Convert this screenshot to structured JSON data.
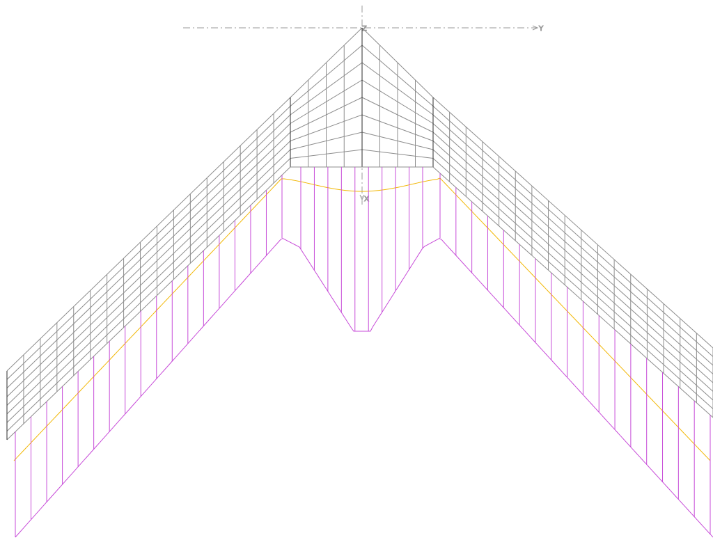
{
  "axes": {
    "y_label": "Y",
    "z_label": "Z",
    "x_label": "X"
  },
  "colors": {
    "background": "#ffffff",
    "mesh": "#8c8c8c",
    "mesh_edge": "#2b2b2b",
    "axis": "#9a9a9a",
    "yellow_curve": "#f2b705",
    "magenta_curve": "#c74bd8"
  },
  "view": {
    "type": "wing planform mesh with spanwise load distributions",
    "curves": [
      "mesh-wireframe",
      "yellow-distribution",
      "magenta-distribution"
    ]
  }
}
